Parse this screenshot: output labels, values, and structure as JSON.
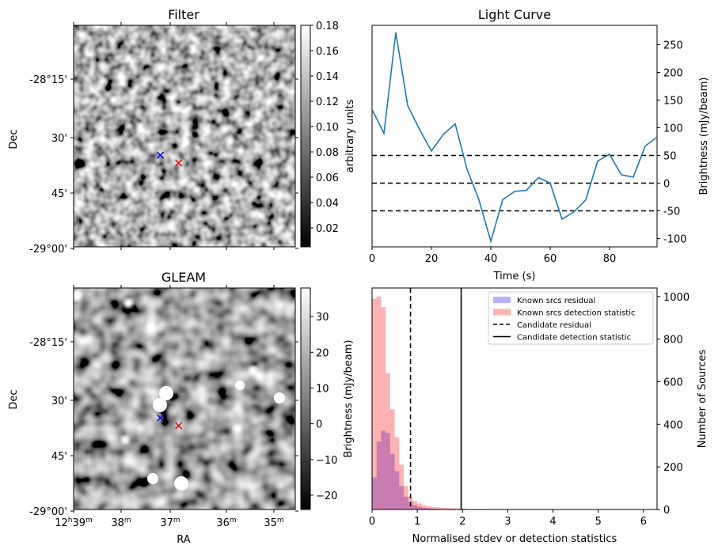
{
  "chart_data": [
    {
      "type": "heatmap",
      "title": "Filter",
      "xlabel": "",
      "ylabel": "Dec",
      "y_ticks": [
        "-28°15'",
        "30'",
        "45'",
        "-29°00'"
      ],
      "colorbar": {
        "label": "arbitrary units",
        "range": [
          0.005,
          0.18
        ],
        "ticks": [
          "0.02",
          "0.04",
          "0.06",
          "0.08",
          "0.10",
          "0.12",
          "0.14",
          "0.16",
          "0.18"
        ]
      },
      "markers": [
        {
          "name": "blue-cross",
          "color": "#0000ff",
          "ra_h": 37.2,
          "dec_min": 34.5
        },
        {
          "name": "red-cross",
          "color": "#ff0000",
          "ra_h": 36.85,
          "dec_min": 36.5
        }
      ]
    },
    {
      "type": "line",
      "title": "Light Curve",
      "xlabel": "Time (s)",
      "ylabel": "Brightness (mJy/beam)",
      "xlim": [
        0,
        96
      ],
      "ylim": [
        -115,
        285
      ],
      "x_ticks": [
        "0",
        "20",
        "40",
        "60",
        "80"
      ],
      "y_ticks": [
        "-100",
        "-50",
        "0",
        "50",
        "100",
        "150",
        "200",
        "250"
      ],
      "series": [
        {
          "color": "#1f77b4",
          "x": [
            0,
            4,
            8,
            12,
            16,
            20,
            24,
            28,
            32,
            36,
            40,
            44,
            48,
            52,
            56,
            60,
            64,
            68,
            72,
            76,
            80,
            84,
            88,
            92,
            96
          ],
          "y": [
            133,
            90,
            272,
            140,
            97,
            58,
            88,
            107,
            25,
            -30,
            -105,
            -30,
            -15,
            -13,
            10,
            0,
            -65,
            -52,
            -30,
            40,
            52,
            15,
            11,
            67,
            83
          ]
        }
      ],
      "hlines": [
        {
          "y": 50,
          "style": "dashed",
          "color": "#000000"
        },
        {
          "y": 0,
          "style": "dashed",
          "color": "#000000"
        },
        {
          "y": -50,
          "style": "dashed",
          "color": "#000000"
        }
      ]
    },
    {
      "type": "heatmap",
      "title": "GLEAM",
      "xlabel": "RA",
      "ylabel": "Dec",
      "y_ticks": [
        "-28°15'",
        "30'",
        "45'",
        "-29°00'"
      ],
      "x_ticks": [
        {
          "main": "12",
          "h": "h",
          "mm": "39",
          "m": "m"
        },
        {
          "main": "38",
          "h": "",
          "mm": "",
          "m": "m"
        },
        {
          "main": "37",
          "h": "",
          "mm": "",
          "m": "m"
        },
        {
          "main": "36",
          "h": "",
          "mm": "",
          "m": "m"
        },
        {
          "main": "35",
          "h": "",
          "mm": "",
          "m": "m"
        }
      ],
      "colorbar": {
        "label": "Brightness (mJy/beam)",
        "range": [
          -24,
          38
        ],
        "ticks": [
          "−20",
          "−10",
          "0",
          "10",
          "20",
          "30"
        ],
        "tick_values": [
          -20,
          -10,
          0,
          10,
          20,
          30
        ]
      },
      "markers": [
        {
          "name": "blue-cross",
          "color": "#0000ff",
          "ra_h": 37.2,
          "dec_min": 34.5
        },
        {
          "name": "red-cross",
          "color": "#ff0000",
          "ra_h": 36.85,
          "dec_min": 36.5
        }
      ]
    },
    {
      "type": "bar",
      "title": "",
      "xlabel": "Normalised stdev or detection statistics",
      "ylabel": "Number of Sources",
      "xlim": [
        0,
        6.3
      ],
      "ylim": [
        0,
        1040
      ],
      "x_ticks": [
        "0",
        "1",
        "2",
        "3",
        "4",
        "5",
        "6"
      ],
      "y_ticks": [
        "0",
        "200",
        "400",
        "600",
        "800",
        "1000"
      ],
      "bin_width": 0.1,
      "series": [
        {
          "name": "Known srcs residual",
          "color": "#0000ff",
          "alpha": 0.3,
          "bin_starts": [
            0.0,
            0.1,
            0.2,
            0.3,
            0.4,
            0.5,
            0.6,
            0.7,
            0.8,
            0.9,
            1.0,
            1.1,
            1.2,
            1.3,
            1.4,
            1.5,
            1.6,
            1.7,
            1.8,
            1.9,
            2.0
          ],
          "counts": [
            150,
            320,
            370,
            360,
            260,
            180,
            110,
            60,
            35,
            20,
            12,
            8,
            6,
            4,
            3,
            2,
            2,
            1,
            1,
            1,
            1
          ]
        },
        {
          "name": "Known srcs detection statistic",
          "color": "#ff0000",
          "alpha": 0.3,
          "bin_starts": [
            0.0,
            0.1,
            0.2,
            0.3,
            0.4,
            0.5,
            0.6,
            0.7,
            0.8,
            0.9,
            1.0,
            1.1,
            1.2,
            1.3,
            1.4,
            1.5,
            1.6,
            1.7,
            1.8,
            1.9,
            2.0,
            2.2,
            2.4,
            2.6,
            2.8,
            3.0,
            3.5,
            4.0,
            5.0,
            5.9
          ],
          "counts": [
            990,
            1000,
            950,
            640,
            470,
            340,
            210,
            110,
            60,
            40,
            28,
            20,
            15,
            12,
            10,
            8,
            7,
            6,
            5,
            4,
            4,
            3,
            3,
            2,
            2,
            2,
            1,
            1,
            1,
            1
          ]
        }
      ],
      "vlines": [
        {
          "name": "Candidate residual",
          "x": 0.85,
          "style": "dashed",
          "color": "#000000"
        },
        {
          "name": "Candidate detection statistic",
          "x": 1.97,
          "style": "solid",
          "color": "#000000"
        }
      ],
      "legend": "top-right"
    }
  ]
}
